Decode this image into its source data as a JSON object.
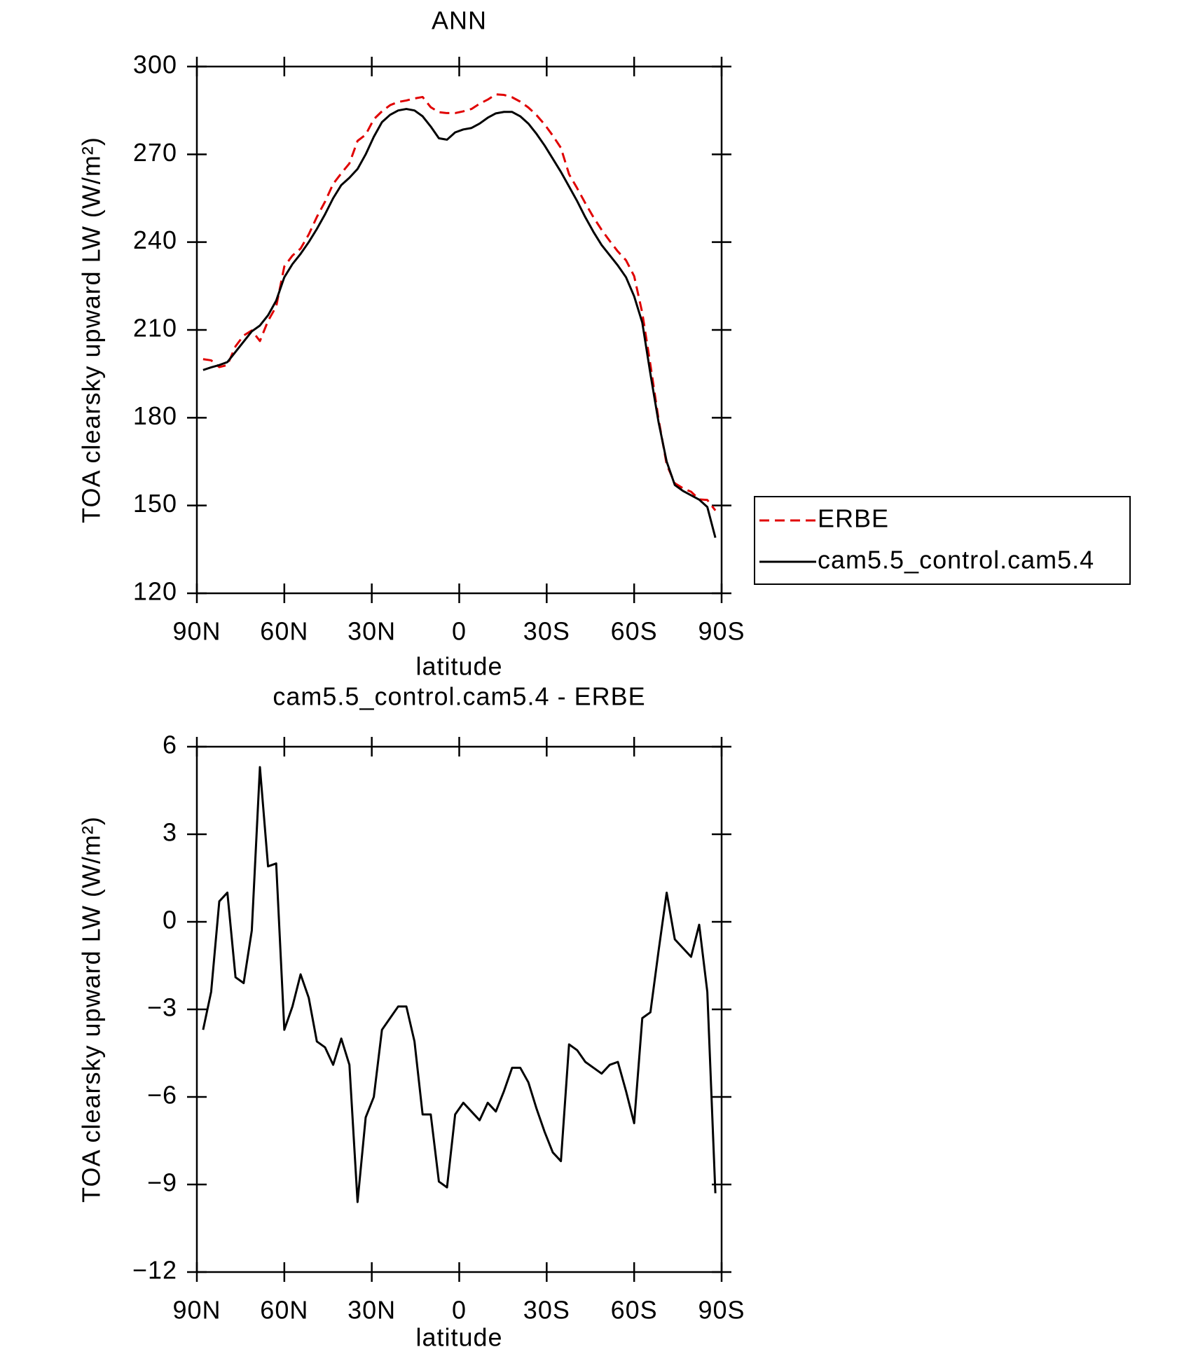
{
  "chart_data": [
    {
      "type": "line",
      "title": "ANN",
      "xlabel": "latitude",
      "ylabel": "TOA clearsky upward LW (W/m²)",
      "x": [
        87.86,
        85.1,
        82.31,
        79.53,
        76.74,
        73.95,
        71.16,
        68.37,
        65.58,
        62.79,
        60.0,
        57.21,
        54.42,
        51.63,
        48.84,
        46.04,
        43.25,
        40.46,
        37.67,
        34.88,
        32.09,
        29.3,
        26.51,
        23.72,
        20.93,
        18.14,
        15.35,
        12.56,
        9.77,
        6.98,
        4.19,
        1.4,
        -1.4,
        -4.19,
        -6.98,
        -9.77,
        -12.56,
        -15.35,
        -18.14,
        -20.93,
        -23.72,
        -26.51,
        -29.3,
        -32.09,
        -34.88,
        -37.67,
        -40.46,
        -43.25,
        -46.04,
        -48.84,
        -51.63,
        -54.42,
        -57.21,
        -60.0,
        -62.79,
        -65.58,
        -68.37,
        -71.16,
        -73.95,
        -76.74,
        -79.53,
        -82.31,
        -85.1,
        -87.86
      ],
      "series": [
        {
          "name": "ERBE",
          "color": "#e00000",
          "linestyle": "dashed",
          "values": [
            200.0,
            199.6,
            197.3,
            198.0,
            204.4,
            208.1,
            209.8,
            206.2,
            213.1,
            218.0,
            231.7,
            235.4,
            237.8,
            242.6,
            248.6,
            253.8,
            259.9,
            263.5,
            266.9,
            274.6,
            276.7,
            282.0,
            284.7,
            286.8,
            287.9,
            288.4,
            289.1,
            289.6,
            286.1,
            284.4,
            284.1,
            284.1,
            284.7,
            285.5,
            287.3,
            288.7,
            290.5,
            290.3,
            289.5,
            288.0,
            286.0,
            283.4,
            280.2,
            276.4,
            272.2,
            263.2,
            258.4,
            253.3,
            248.5,
            244.2,
            240.4,
            236.8,
            233.8,
            228.4,
            215.8,
            198.1,
            179.5,
            164.0,
            157.6,
            155.9,
            154.7,
            152.1,
            151.9,
            148.3
          ]
        },
        {
          "name": "cam5.5_control.cam5.4",
          "color": "#000000",
          "linestyle": "solid",
          "values": [
            196.3,
            197.2,
            198.0,
            199.0,
            202.5,
            206.0,
            209.5,
            211.5,
            215.0,
            220.0,
            228.0,
            232.5,
            236.0,
            240.0,
            244.5,
            249.5,
            255.0,
            259.5,
            262.0,
            265.0,
            270.0,
            276.0,
            281.0,
            283.5,
            285.0,
            285.5,
            285.0,
            283.0,
            279.5,
            275.5,
            275.0,
            277.5,
            278.5,
            279.0,
            280.5,
            282.5,
            284.0,
            284.5,
            284.5,
            283.0,
            280.5,
            277.0,
            273.0,
            268.5,
            264.0,
            259.0,
            254.0,
            248.5,
            243.5,
            239.0,
            235.5,
            232.0,
            228.0,
            221.5,
            212.5,
            195.0,
            178.5,
            165.0,
            157.0,
            155.0,
            153.5,
            152.0,
            149.5,
            139.0
          ]
        }
      ],
      "xlim": [
        90,
        -90
      ],
      "xticks": [
        {
          "value": 90,
          "label": "90N"
        },
        {
          "value": 60,
          "label": "60N"
        },
        {
          "value": 30,
          "label": "30N"
        },
        0,
        {
          "value": -30,
          "label": "30S"
        },
        {
          "value": -60,
          "label": "60S"
        },
        {
          "value": -90,
          "label": "90S"
        }
      ],
      "ylim": [
        120,
        300
      ],
      "yticks": [
        120,
        150,
        180,
        210,
        240,
        270,
        300
      ],
      "legend": "right"
    },
    {
      "type": "line",
      "title": "cam5.5_control.cam5.4 - ERBE",
      "xlabel": "latitude",
      "ylabel": "TOA clearsky upward LW (W/m²)",
      "x": [
        87.86,
        85.1,
        82.31,
        79.53,
        76.74,
        73.95,
        71.16,
        68.37,
        65.58,
        62.79,
        60.0,
        57.21,
        54.42,
        51.63,
        48.84,
        46.04,
        43.25,
        40.46,
        37.67,
        34.88,
        32.09,
        29.3,
        26.51,
        23.72,
        20.93,
        18.14,
        15.35,
        12.56,
        9.77,
        6.98,
        4.19,
        1.4,
        -1.4,
        -4.19,
        -6.98,
        -9.77,
        -12.56,
        -15.35,
        -18.14,
        -20.93,
        -23.72,
        -26.51,
        -29.3,
        -32.09,
        -34.88,
        -37.67,
        -40.46,
        -43.25,
        -46.04,
        -48.84,
        -51.63,
        -54.42,
        -57.21,
        -60.0,
        -62.79,
        -65.58,
        -68.37,
        -71.16,
        -73.95,
        -76.74,
        -79.53,
        -82.31,
        -85.1,
        -87.86
      ],
      "color": "#000000",
      "values": [
        -3.7,
        -2.4,
        0.7,
        1.0,
        -1.9,
        -2.1,
        -0.3,
        5.3,
        1.9,
        2.0,
        -3.7,
        -2.9,
        -1.8,
        -2.6,
        -4.1,
        -4.3,
        -4.9,
        -4.0,
        -4.9,
        -9.6,
        -6.7,
        -6.0,
        -3.7,
        -3.3,
        -2.9,
        -2.9,
        -4.1,
        -6.6,
        -6.6,
        -8.9,
        -9.1,
        -6.6,
        -6.2,
        -6.5,
        -6.8,
        -6.2,
        -6.5,
        -5.8,
        -5.0,
        -5.0,
        -5.5,
        -6.4,
        -7.2,
        -7.9,
        -8.2,
        -4.2,
        -4.4,
        -4.8,
        -5.0,
        -5.2,
        -4.9,
        -4.8,
        -5.8,
        -6.9,
        -3.3,
        -3.1,
        -1.0,
        1.0,
        -0.6,
        -0.9,
        -1.2,
        -0.1,
        -2.4,
        -9.3
      ],
      "xlim": [
        90,
        -90
      ],
      "xticks": [
        {
          "value": 90,
          "label": "90N"
        },
        {
          "value": 60,
          "label": "60N"
        },
        {
          "value": 30,
          "label": "30N"
        },
        0,
        {
          "value": -30,
          "label": "30S"
        },
        {
          "value": -60,
          "label": "60S"
        },
        {
          "value": -90,
          "label": "90S"
        }
      ],
      "ylim": [
        -12,
        6
      ],
      "yticks": [
        {
          "value": -12,
          "label": "−12"
        },
        {
          "value": -9,
          "label": "−9"
        },
        {
          "value": -6,
          "label": "−6"
        },
        {
          "value": -3,
          "label": "−3"
        },
        0,
        3,
        6
      ]
    }
  ]
}
